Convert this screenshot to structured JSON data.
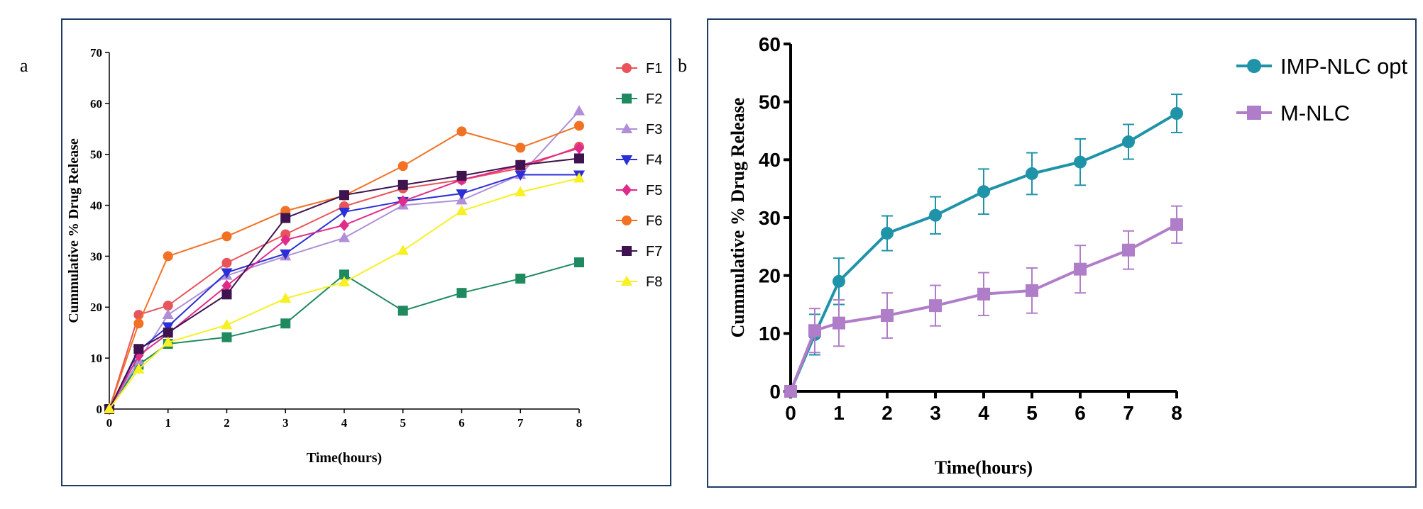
{
  "panels": {
    "a_label": "a",
    "b_label": "b"
  },
  "chart_data": [
    {
      "type": "line",
      "panel": "a",
      "xlabel": "Time(hours)",
      "ylabel": "Cummulative % Drug Release",
      "xlim": [
        0,
        8
      ],
      "ylim": [
        0,
        70
      ],
      "x_ticks": [
        0,
        1,
        2,
        3,
        4,
        5,
        6,
        7,
        8
      ],
      "y_ticks": [
        0,
        10,
        20,
        30,
        40,
        50,
        60,
        70
      ],
      "x": [
        0,
        0.5,
        1,
        2,
        3,
        4,
        5,
        6,
        7,
        8
      ],
      "legend_position": "right",
      "series": [
        {
          "name": "F1",
          "color": "#e8545a",
          "marker": "circle",
          "values": [
            0,
            18.5,
            20.3,
            28.7,
            34.3,
            39.8,
            43.3,
            45.0,
            47.3,
            51.5
          ]
        },
        {
          "name": "F2",
          "color": "#1f8a5f",
          "marker": "square",
          "values": [
            0,
            8.7,
            12.8,
            14.1,
            16.8,
            26.4,
            19.3,
            22.8,
            25.6,
            28.8
          ]
        },
        {
          "name": "F3",
          "color": "#b08fd8",
          "marker": "triangle-up",
          "values": [
            0,
            9.5,
            18.5,
            26.2,
            30.0,
            33.6,
            40.0,
            41.0,
            46.0,
            58.5
          ]
        },
        {
          "name": "F4",
          "color": "#2b2fd6",
          "marker": "triangle-down",
          "values": [
            0,
            11.5,
            16.2,
            26.8,
            30.5,
            38.7,
            40.8,
            42.3,
            46.0,
            46.0
          ]
        },
        {
          "name": "F5",
          "color": "#e02b8a",
          "marker": "diamond",
          "values": [
            0,
            10.5,
            14.8,
            24.2,
            33.2,
            36.1,
            40.8,
            45.0,
            47.8,
            51.2
          ]
        },
        {
          "name": "F6",
          "color": "#f27224",
          "marker": "circle",
          "values": [
            0,
            16.8,
            30.0,
            33.9,
            38.9,
            41.9,
            47.7,
            54.5,
            51.3,
            55.6
          ]
        },
        {
          "name": "F7",
          "color": "#3e1350",
          "marker": "square",
          "values": [
            0,
            11.8,
            15.0,
            22.5,
            37.5,
            42.0,
            44.0,
            45.8,
            47.9,
            49.2
          ]
        },
        {
          "name": "F8",
          "color": "#f7f022",
          "marker": "triangle-up",
          "values": [
            0,
            7.8,
            13.1,
            16.5,
            21.7,
            24.9,
            31.1,
            38.9,
            42.6,
            45.3
          ]
        }
      ]
    },
    {
      "type": "line",
      "panel": "b",
      "xlabel": "Time(hours)",
      "ylabel": "Cummulative % Drug Release",
      "xlim": [
        0,
        8
      ],
      "ylim": [
        0,
        60
      ],
      "x_ticks": [
        0,
        1,
        2,
        3,
        4,
        5,
        6,
        7,
        8
      ],
      "y_ticks": [
        0,
        10,
        20,
        30,
        40,
        50,
        60
      ],
      "x": [
        0,
        0.5,
        1,
        2,
        3,
        4,
        5,
        6,
        7,
        8
      ],
      "legend_position": "top-right",
      "series": [
        {
          "name": "IMP-NLC opt",
          "color": "#1f93a8",
          "marker": "circle",
          "values": [
            0,
            9.8,
            19.0,
            27.3,
            30.4,
            34.5,
            37.6,
            39.6,
            43.1,
            48.0
          ],
          "error": [
            0,
            3.5,
            4.0,
            3.0,
            3.2,
            3.9,
            3.6,
            4.0,
            3.0,
            3.3
          ]
        },
        {
          "name": "M-NLC",
          "color": "#b07ec8",
          "marker": "square",
          "values": [
            0,
            10.5,
            11.8,
            13.1,
            14.8,
            16.8,
            17.4,
            21.1,
            24.4,
            28.8
          ],
          "error": [
            0,
            3.8,
            4.0,
            3.9,
            3.5,
            3.7,
            3.9,
            4.1,
            3.3,
            3.2
          ]
        }
      ]
    }
  ]
}
